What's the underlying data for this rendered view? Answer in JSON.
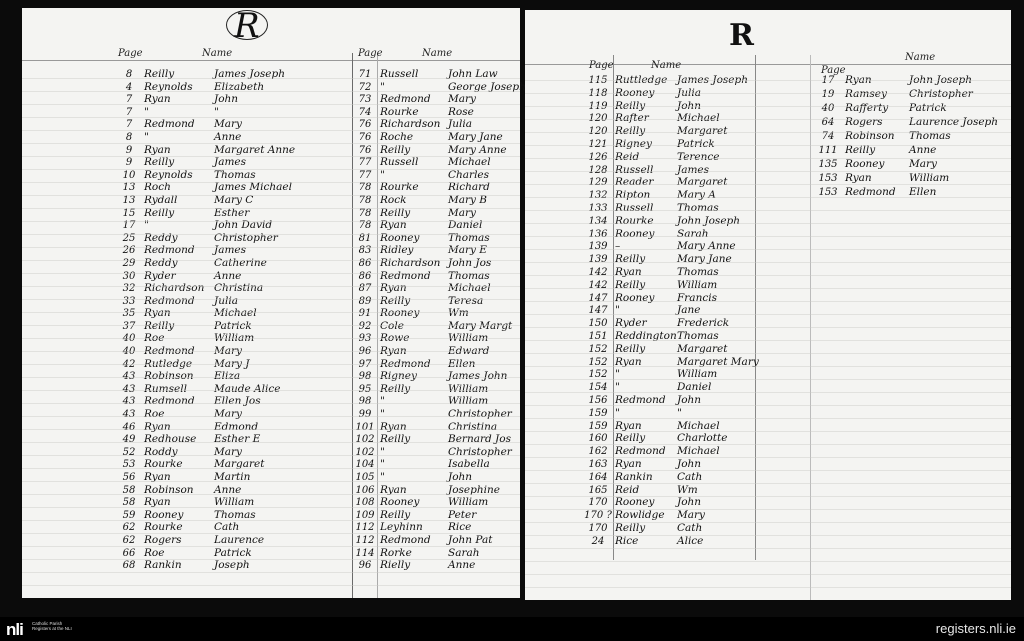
{
  "left_page": {
    "letter": "R",
    "headers": {
      "page": "Page",
      "name": "Name"
    },
    "column_1": [
      [
        "8",
        "Reilly",
        "James Joseph"
      ],
      [
        "4",
        "Reynolds",
        "Elizabeth"
      ],
      [
        "7",
        "Ryan",
        "John"
      ],
      [
        "7",
        "\"",
        "\""
      ],
      [
        "7",
        "Redmond",
        "Mary"
      ],
      [
        "8",
        "\"",
        "Anne"
      ],
      [
        "9",
        "Ryan",
        "Margaret Anne"
      ],
      [
        "9",
        "Reilly",
        "James"
      ],
      [
        "10",
        "Reynolds",
        "Thomas"
      ],
      [
        "13",
        "Roch",
        "James Michael"
      ],
      [
        "13",
        "Rydall",
        "Mary C"
      ],
      [
        "15",
        "Reilly",
        "Esther"
      ],
      [
        "17",
        "\"",
        "John David"
      ],
      [
        "25",
        "Reddy",
        "Christopher"
      ],
      [
        "26",
        "Redmond",
        "James"
      ],
      [
        "29",
        "Reddy",
        "Catherine"
      ],
      [
        "30",
        "Ryder",
        "Anne"
      ],
      [
        "32",
        "Richardson",
        "Christina"
      ],
      [
        "33",
        "Redmond",
        "Julia"
      ],
      [
        "35",
        "Ryan",
        "Michael"
      ],
      [
        "37",
        "Reilly",
        "Patrick"
      ],
      [
        "40",
        "Roe",
        "William"
      ],
      [
        "40",
        "Redmond",
        "Mary"
      ],
      [
        "42",
        "Rutledge",
        "Mary J"
      ],
      [
        "43",
        "Robinson",
        "Eliza"
      ],
      [
        "43",
        "Rumsell",
        "Maude Alice"
      ],
      [
        "43",
        "Redmond",
        "Ellen Jos"
      ],
      [
        "43",
        "Roe",
        "Mary"
      ],
      [
        "46",
        "Ryan",
        "Edmond"
      ],
      [
        "49",
        "Redhouse",
        "Esther E"
      ],
      [
        "52",
        "Roddy",
        "Mary"
      ],
      [
        "53",
        "Rourke",
        "Margaret"
      ],
      [
        "56",
        "Ryan",
        "Martin"
      ],
      [
        "58",
        "Robinson",
        "Anne"
      ],
      [
        "58",
        "Ryan",
        "William"
      ],
      [
        "59",
        "Rooney",
        "Thomas"
      ],
      [
        "62",
        "Rourke",
        "Cath"
      ],
      [
        "62",
        "Rogers",
        "Laurence"
      ],
      [
        "66",
        "Roe",
        "Patrick"
      ],
      [
        "68",
        "Rankin",
        "Joseph"
      ]
    ],
    "column_2": [
      [
        "71",
        "Russell",
        "John Law"
      ],
      [
        "72",
        "\"",
        "George Joseph"
      ],
      [
        "73",
        "Redmond",
        "Mary"
      ],
      [
        "74",
        "Rourke",
        "Rose"
      ],
      [
        "76",
        "Richardson",
        "Julia"
      ],
      [
        "76",
        "Roche",
        "Mary Jane"
      ],
      [
        "76",
        "Reilly",
        "Mary Anne"
      ],
      [
        "77",
        "Russell",
        "Michael"
      ],
      [
        "77",
        "\"",
        "Charles"
      ],
      [
        "78",
        "Rourke",
        "Richard"
      ],
      [
        "78",
        "Rock",
        "Mary B"
      ],
      [
        "78",
        "Reilly",
        "Mary"
      ],
      [
        "78",
        "Ryan",
        "Daniel"
      ],
      [
        "81",
        "Rooney",
        "Thomas"
      ],
      [
        "83",
        "Ridley",
        "Mary E"
      ],
      [
        "86",
        "Richardson",
        "John Jos"
      ],
      [
        "86",
        "Redmond",
        "Thomas"
      ],
      [
        "87",
        "Ryan",
        "Michael"
      ],
      [
        "89",
        "Reilly",
        "Teresa"
      ],
      [
        "91",
        "Rooney",
        "Wm"
      ],
      [
        "92",
        "Cole",
        "Mary Margt"
      ],
      [
        "93",
        "Rowe",
        "William"
      ],
      [
        "96",
        "Ryan",
        "Edward"
      ],
      [
        "97",
        "Redmond",
        "Ellen"
      ],
      [
        "98",
        "Rigney",
        "James John"
      ],
      [
        "95",
        "Reilly",
        "William"
      ],
      [
        "98",
        "\"",
        "William"
      ],
      [
        "99",
        "\"",
        "Christopher"
      ],
      [
        "101",
        "Ryan",
        "Christina"
      ],
      [
        "102",
        "Reilly",
        "Bernard Jos"
      ],
      [
        "102",
        "\"",
        "Christopher"
      ],
      [
        "104",
        "\"",
        "Isabella"
      ],
      [
        "105",
        "\"",
        "John"
      ],
      [
        "106",
        "Ryan",
        "Josephine"
      ],
      [
        "108",
        "Rooney",
        "William"
      ],
      [
        "109",
        "Reilly",
        "Peter"
      ],
      [
        "112",
        "Leyhinn",
        "Rice"
      ],
      [
        "112",
        "Redmond",
        "John Pat"
      ],
      [
        "114",
        "Rorke",
        "Sarah"
      ],
      [
        "96",
        "Rielly",
        "Anne"
      ]
    ]
  },
  "right_page": {
    "letter": "R",
    "headers": {
      "page": "Page",
      "name": "Name",
      "page_2": "Page",
      "name_2": "Name"
    },
    "column_1": [
      [
        "115",
        "Ruttledge",
        "James Joseph"
      ],
      [
        "118",
        "Rooney",
        "Julia"
      ],
      [
        "119",
        "Reilly",
        "John"
      ],
      [
        "120",
        "Rafter",
        "Michael"
      ],
      [
        "120",
        "Reilly",
        "Margaret"
      ],
      [
        "121",
        "Rigney",
        "Patrick"
      ],
      [
        "126",
        "Reid",
        "Terence"
      ],
      [
        "128",
        "Russell",
        "James"
      ],
      [
        "129",
        "Reader",
        "Margaret"
      ],
      [
        "132",
        "Ripton",
        "Mary A"
      ],
      [
        "133",
        "Russell",
        "Thomas"
      ],
      [
        "134",
        "Rourke",
        "John Joseph"
      ],
      [
        "136",
        "Rooney",
        "Sarah"
      ],
      [
        "139",
        "–",
        "Mary Anne"
      ],
      [
        "139",
        "Reilly",
        "Mary Jane"
      ],
      [
        "142",
        "Ryan",
        "Thomas"
      ],
      [
        "142",
        "Reilly",
        "William"
      ],
      [
        "147",
        "Rooney",
        "Francis"
      ],
      [
        "147",
        "\"",
        "Jane"
      ],
      [
        "150",
        "Ryder",
        "Frederick"
      ],
      [
        "151",
        "Reddington",
        "Thomas"
      ],
      [
        "152",
        "Reilly",
        "Margaret"
      ],
      [
        "152",
        "Ryan",
        "Margaret Mary"
      ],
      [
        "152",
        "\"",
        "William"
      ],
      [
        "154",
        "\"",
        "Daniel"
      ],
      [
        "156",
        "Redmond",
        "John"
      ],
      [
        "159",
        "\"",
        "\""
      ],
      [
        "159",
        "Ryan",
        "Michael"
      ],
      [
        "160",
        "Reilly",
        "Charlotte"
      ],
      [
        "162",
        "Redmond",
        "Michael"
      ],
      [
        "163",
        "Ryan",
        "John"
      ],
      [
        "164",
        "Rankin",
        "Cath"
      ],
      [
        "165",
        "Reid",
        "Wm"
      ],
      [
        "170",
        "Rooney",
        "John"
      ],
      [
        "170 ?",
        "Rowlidge",
        "Mary"
      ],
      [
        "170",
        "Reilly",
        "Cath"
      ],
      [
        "24",
        "Rice",
        "Alice"
      ]
    ],
    "column_2": [
      [
        "17",
        "Ryan",
        "John Joseph"
      ],
      [
        "19",
        "Ramsey",
        "Christopher"
      ],
      [
        "40",
        "Rafferty",
        "Patrick"
      ],
      [
        "64",
        "Rogers",
        "Laurence Joseph"
      ],
      [
        "74",
        "Robinson",
        "Thomas"
      ],
      [
        "111",
        "Reilly",
        "Anne"
      ],
      [
        "135",
        "Rooney",
        "Mary"
      ],
      [
        "153",
        "Ryan",
        "William"
      ],
      [
        "153",
        "Redmond",
        "Ellen"
      ]
    ]
  },
  "footer": {
    "logo": "nli",
    "logo_text": "Catholic Parish Registers at the NLI",
    "site": "registers.nli.ie"
  }
}
